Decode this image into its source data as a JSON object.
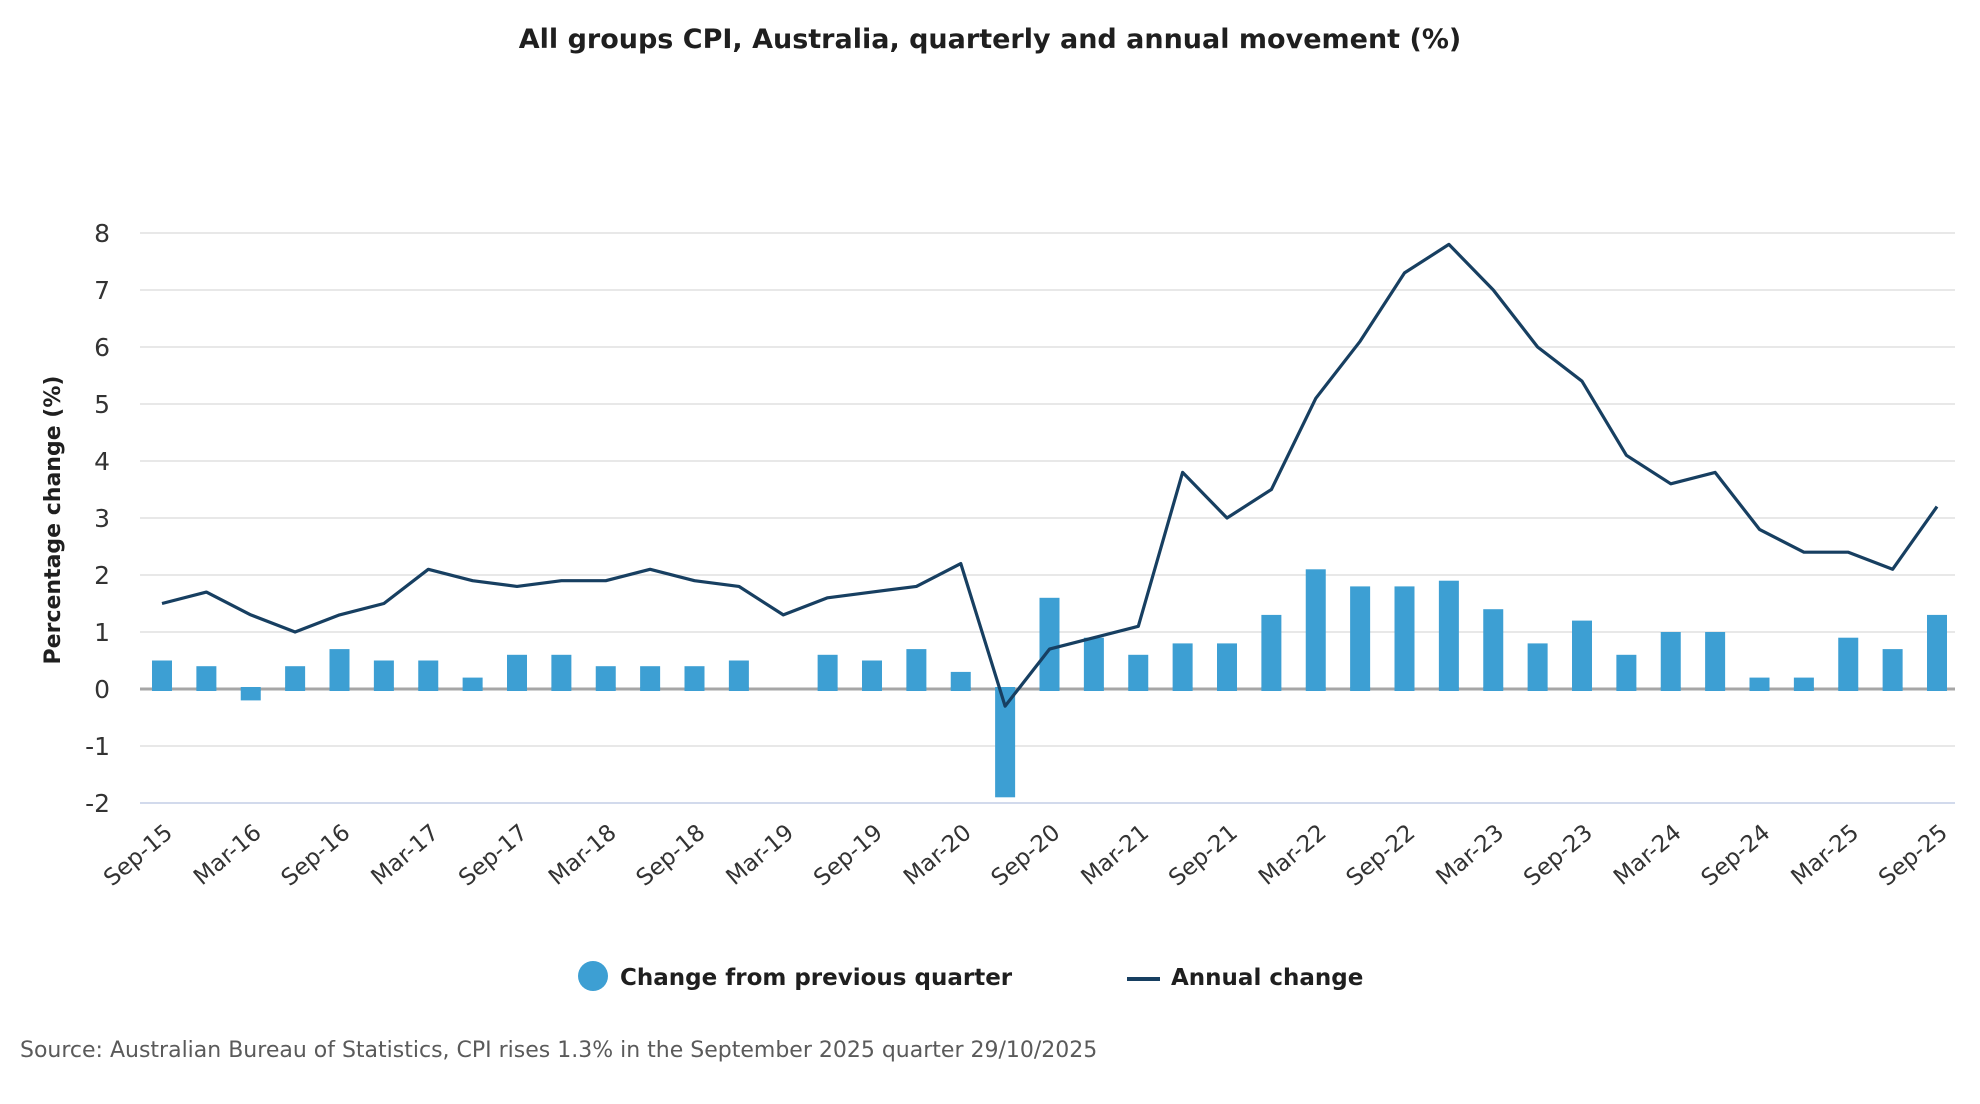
{
  "colors": {
    "bar": "#3d9fd3",
    "line": "#173f61",
    "grid": "#d9d9d9",
    "zero_line": "#a6a6a6",
    "x_axis": "#b8c4e0"
  },
  "chart_data": {
    "type": "bar+line",
    "title": "All groups CPI, Australia, quarterly and annual movement (%)",
    "xlabel": "",
    "ylabel": "Percentage change (%)",
    "ylim": [
      -2,
      8
    ],
    "yticks": [
      "8",
      "7",
      "6",
      "5",
      "4",
      "3",
      "2",
      "1",
      "0",
      "-1",
      "-2"
    ],
    "ytick_values": [
      8,
      7,
      6,
      5,
      4,
      3,
      2,
      1,
      0,
      -1,
      -2
    ],
    "grid": true,
    "legend_position": "bottom",
    "x": [
      "Sep-15",
      "Dec-15",
      "Mar-16",
      "Jun-16",
      "Sep-16",
      "Dec-16",
      "Mar-17",
      "Jun-17",
      "Sep-17",
      "Dec-17",
      "Mar-18",
      "Jun-18",
      "Sep-18",
      "Dec-18",
      "Mar-19",
      "Jun-19",
      "Sep-19",
      "Dec-19",
      "Mar-20",
      "Jun-20",
      "Sep-20",
      "Dec-20",
      "Mar-21",
      "Jun-21",
      "Sep-21",
      "Dec-21",
      "Mar-22",
      "Jun-22",
      "Sep-22",
      "Dec-22",
      "Mar-23",
      "Jun-23",
      "Sep-23",
      "Dec-23",
      "Mar-24",
      "Jun-24",
      "Sep-24",
      "Dec-24",
      "Mar-25",
      "Jun-25",
      "Sep-25"
    ],
    "x_tick_labels": [
      "Sep-15",
      "Mar-16",
      "Sep-16",
      "Mar-17",
      "Sep-17",
      "Mar-18",
      "Sep-18",
      "Mar-19",
      "Sep-19",
      "Mar-20",
      "Sep-20",
      "Mar-21",
      "Sep-21",
      "Mar-22",
      "Sep-22",
      "Mar-23",
      "Sep-23",
      "Mar-24",
      "Sep-24",
      "Mar-25",
      "Sep-25"
    ],
    "series": [
      {
        "name": "Change from previous quarter",
        "type": "bar",
        "values": [
          0.5,
          0.4,
          -0.2,
          0.4,
          0.7,
          0.5,
          0.5,
          0.2,
          0.6,
          0.6,
          0.4,
          0.4,
          0.4,
          0.5,
          0.0,
          0.6,
          0.5,
          0.7,
          0.3,
          -1.9,
          1.6,
          0.9,
          0.6,
          0.8,
          0.8,
          1.3,
          2.1,
          1.8,
          1.8,
          1.9,
          1.4,
          0.8,
          1.2,
          0.6,
          1.0,
          1.0,
          0.2,
          0.2,
          0.9,
          0.7,
          1.3
        ]
      },
      {
        "name": "Annual change",
        "type": "line",
        "values": [
          1.5,
          1.7,
          1.3,
          1.0,
          1.3,
          1.5,
          2.1,
          1.9,
          1.8,
          1.9,
          1.9,
          2.1,
          1.9,
          1.8,
          1.3,
          1.6,
          1.7,
          1.8,
          2.2,
          -0.3,
          0.7,
          0.9,
          1.1,
          3.8,
          3.0,
          3.5,
          5.1,
          6.1,
          7.3,
          7.8,
          7.0,
          6.0,
          5.4,
          4.1,
          3.6,
          3.8,
          2.8,
          2.4,
          2.4,
          2.1,
          3.2
        ]
      }
    ]
  },
  "legend": {
    "bar_label": "Change from previous quarter",
    "line_label": "Annual change"
  },
  "source": "Source: Australian Bureau of Statistics, CPI rises 1.3% in the September 2025 quarter 29/10/2025"
}
